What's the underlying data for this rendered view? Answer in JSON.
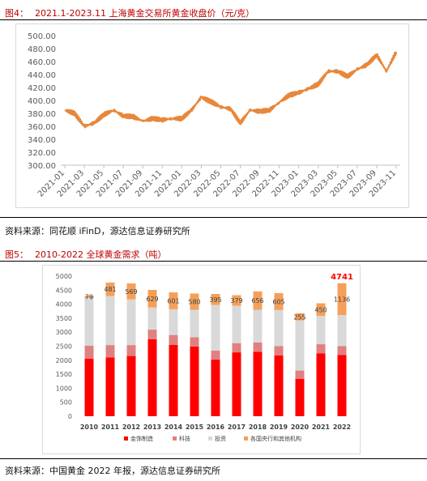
{
  "figure4": {
    "number": "图4：",
    "title": "2021.1-2023.11 上海黄金交易所黄金收盘价（元/克）",
    "source": "资料来源：同花顺 iFinD，源达信息证券研究所",
    "chart_data": {
      "type": "line",
      "title": "2021.1-2023.11 上海黄金交易所黄金收盘价（元/克）",
      "xlabel": "",
      "ylabel": "",
      "ylim": [
        300,
        500
      ],
      "yticks": [
        "300.00",
        "320.00",
        "340.00",
        "360.00",
        "380.00",
        "400.00",
        "420.00",
        "440.00",
        "460.00",
        "480.00",
        "500.00"
      ],
      "xticks": [
        "2021-01",
        "2021-03",
        "2021-05",
        "2021-07",
        "2021-09",
        "2021-11",
        "2022-01",
        "2022-03",
        "2022-05",
        "2022-07",
        "2022-09",
        "2022-11",
        "2023-01",
        "2023-03",
        "2023-05",
        "2023-07",
        "2023-09",
        "2023-11"
      ],
      "color": "#e8873a",
      "grid": false,
      "series": [
        {
          "name": "",
          "x": [
            "2021-01",
            "2021-02",
            "2021-03",
            "2021-04",
            "2021-05",
            "2021-06",
            "2021-07",
            "2021-08",
            "2021-09",
            "2021-10",
            "2021-11",
            "2021-12",
            "2022-01",
            "2022-02",
            "2022-03",
            "2022-04",
            "2022-05",
            "2022-06",
            "2022-07",
            "2022-08",
            "2022-09",
            "2022-10",
            "2022-11",
            "2022-12",
            "2023-01",
            "2023-02",
            "2023-03",
            "2023-04",
            "2023-05",
            "2023-06",
            "2023-07",
            "2023-08",
            "2023-09",
            "2023-10",
            "2023-11"
          ],
          "values": [
            385,
            380,
            360,
            365,
            378,
            385,
            376,
            375,
            368,
            372,
            370,
            372,
            372,
            385,
            405,
            398,
            390,
            387,
            365,
            385,
            383,
            385,
            397,
            408,
            412,
            418,
            425,
            445,
            445,
            437,
            448,
            455,
            470,
            445,
            475
          ]
        }
      ]
    }
  },
  "figure5": {
    "number": "图5：",
    "title": "2010-2022 全球黄金需求（吨）",
    "source": "资料来源：中国黄金 2022 年报，源达信息证券研究所",
    "chart_data": {
      "type": "bar",
      "stacked": true,
      "title": "2010-2022 全球黄金需求（吨）",
      "ylim": [
        0,
        5000
      ],
      "yticks": [
        "0",
        "500",
        "1000",
        "1500",
        "2000",
        "2500",
        "3000",
        "3500",
        "4000",
        "4500",
        "5000"
      ],
      "categories": [
        "2010",
        "2011",
        "2012",
        "2013",
        "2014",
        "2015",
        "2016",
        "2017",
        "2018",
        "2019",
        "2020",
        "2021",
        "2022"
      ],
      "legend_position": "bottom",
      "series": [
        {
          "name": "金饰制造",
          "color": "#ff0000",
          "values": [
            2060,
            2100,
            2150,
            2750,
            2550,
            2490,
            2020,
            2280,
            2300,
            2170,
            1330,
            2240,
            2190
          ]
        },
        {
          "name": "科技",
          "color": "#e08080",
          "values": [
            460,
            440,
            390,
            340,
            350,
            330,
            320,
            330,
            330,
            330,
            300,
            330,
            310
          ]
        },
        {
          "name": "投资",
          "color": "#d9d9d9",
          "values": [
            1700,
            1750,
            1630,
            790,
            920,
            980,
            1630,
            1330,
            1170,
            1290,
            1790,
            1010,
            1110
          ]
        },
        {
          "name": "各国央行和其他机构",
          "color": "#f5a05a",
          "values": [
            79,
            481,
            569,
            629,
            601,
            580,
            395,
            379,
            656,
            605,
            255,
            450,
            1136
          ]
        }
      ],
      "data_labels": [
        "79",
        "481",
        "569",
        "629",
        "601",
        "580",
        "395",
        "379",
        "656",
        "605",
        "255",
        "450",
        "1136"
      ],
      "highlight_label": {
        "category": "2022",
        "text": "4741",
        "color": "#ff0000"
      }
    }
  }
}
